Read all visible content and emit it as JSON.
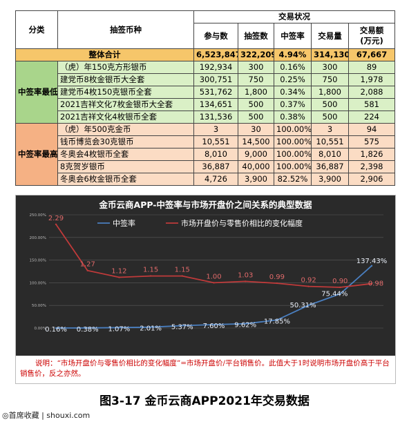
{
  "table": {
    "h_category": "分类",
    "h_coin": "抽签币种",
    "h_status": "交易状况",
    "h_cols": [
      "参与数",
      "抽签数",
      "中签率",
      "交易量",
      "交易额\n(万元)"
    ],
    "total": {
      "label": "整体合计",
      "values": [
        "6,523,847",
        "322,209",
        "4.94%",
        "314,130",
        "67,667"
      ]
    },
    "low_group": "中签率最低的前五位",
    "low_rows": [
      {
        "name": "（虎）年150克方形银币",
        "values": [
          "192,934",
          "300",
          "0.16%",
          "300",
          "89"
        ]
      },
      {
        "name": "建党币8枚金银币大全套",
        "values": [
          "300,751",
          "750",
          "0.25%",
          "750",
          "1,978"
        ]
      },
      {
        "name": "建党币4枚150克银币全套",
        "values": [
          "531,762",
          "1,800",
          "0.34%",
          "1,800",
          "2,088"
        ]
      },
      {
        "name": "2021吉祥文化7枚金银币大全套",
        "values": [
          "134,651",
          "500",
          "0.37%",
          "500",
          "581"
        ]
      },
      {
        "name": "2021吉祥文化4枚银币全套",
        "values": [
          "131,536",
          "500",
          "0.38%",
          "500",
          "224"
        ]
      }
    ],
    "high_group": "中签率最高的前五位",
    "high_rows": [
      {
        "name": "（虎）年500克金币",
        "values": [
          "3",
          "30",
          "100.00%",
          "3",
          "94"
        ]
      },
      {
        "name": "钱币博览会30克银币",
        "values": [
          "10,551",
          "14,500",
          "100.00%",
          "10,551",
          "575"
        ]
      },
      {
        "name": "冬奥会4枚银币全套",
        "values": [
          "8,010",
          "9,000",
          "100.00%",
          "8,010",
          "1,826"
        ]
      },
      {
        "name": "8克贺岁银币",
        "values": [
          "36,887",
          "40,000",
          "100.00%",
          "36,887",
          "2,398"
        ]
      },
      {
        "name": "冬奥会6枚金银币全套",
        "values": [
          "4,726",
          "3,900",
          "82.52%",
          "3,900",
          "2,906"
        ]
      }
    ]
  },
  "chart_data": {
    "type": "line",
    "title": "金币云商APP-中签率与市场开盘价之间关系的典型数据",
    "yticks": [
      "0.00%",
      "50.00%",
      "100.00%",
      "150.00%",
      "200.00%",
      "250.00%"
    ],
    "ylim": [
      0,
      2.5
    ],
    "x": [
      1,
      2,
      3,
      4,
      5,
      6,
      7,
      8,
      9,
      10,
      11
    ],
    "series": [
      {
        "name": "中签率",
        "color": "#4a7fc0",
        "values": [
          0.0016,
          0.0038,
          0.0107,
          0.0201,
          0.0537,
          0.076,
          0.0962,
          0.1785,
          0.5031,
          0.7544,
          1.3743
        ],
        "labels": [
          "0.16%",
          "0.38%",
          "1.07%",
          "2.01%",
          "5.37%",
          "7.60%",
          "9.62%",
          "17.85%",
          "50.31%",
          "75.44%",
          "137.43%"
        ]
      },
      {
        "name": "市场开盘价与零售价相比的变化幅度",
        "color": "#c03a3a",
        "values": [
          2.29,
          1.27,
          1.12,
          1.15,
          1.15,
          1.0,
          1.03,
          0.99,
          0.92,
          0.9,
          0.98
        ],
        "labels": [
          "2.29",
          "1.27",
          "1.12",
          "1.15",
          "1.15",
          "1.00",
          "1.03",
          "0.99",
          "0.92",
          "0.90",
          "0.98"
        ]
      }
    ],
    "background": "#2a2a2a",
    "note": "说明：“市场开盘价与零售价相比的变化幅度”=市场开盘价/平台销售价。此值大于1时说明市场开盘价高于平台销售价，反之亦然。"
  },
  "caption": "图3-17  金币云商APP2021年交易数据",
  "watermark": "◎首席收藏 | shouxi.com"
}
